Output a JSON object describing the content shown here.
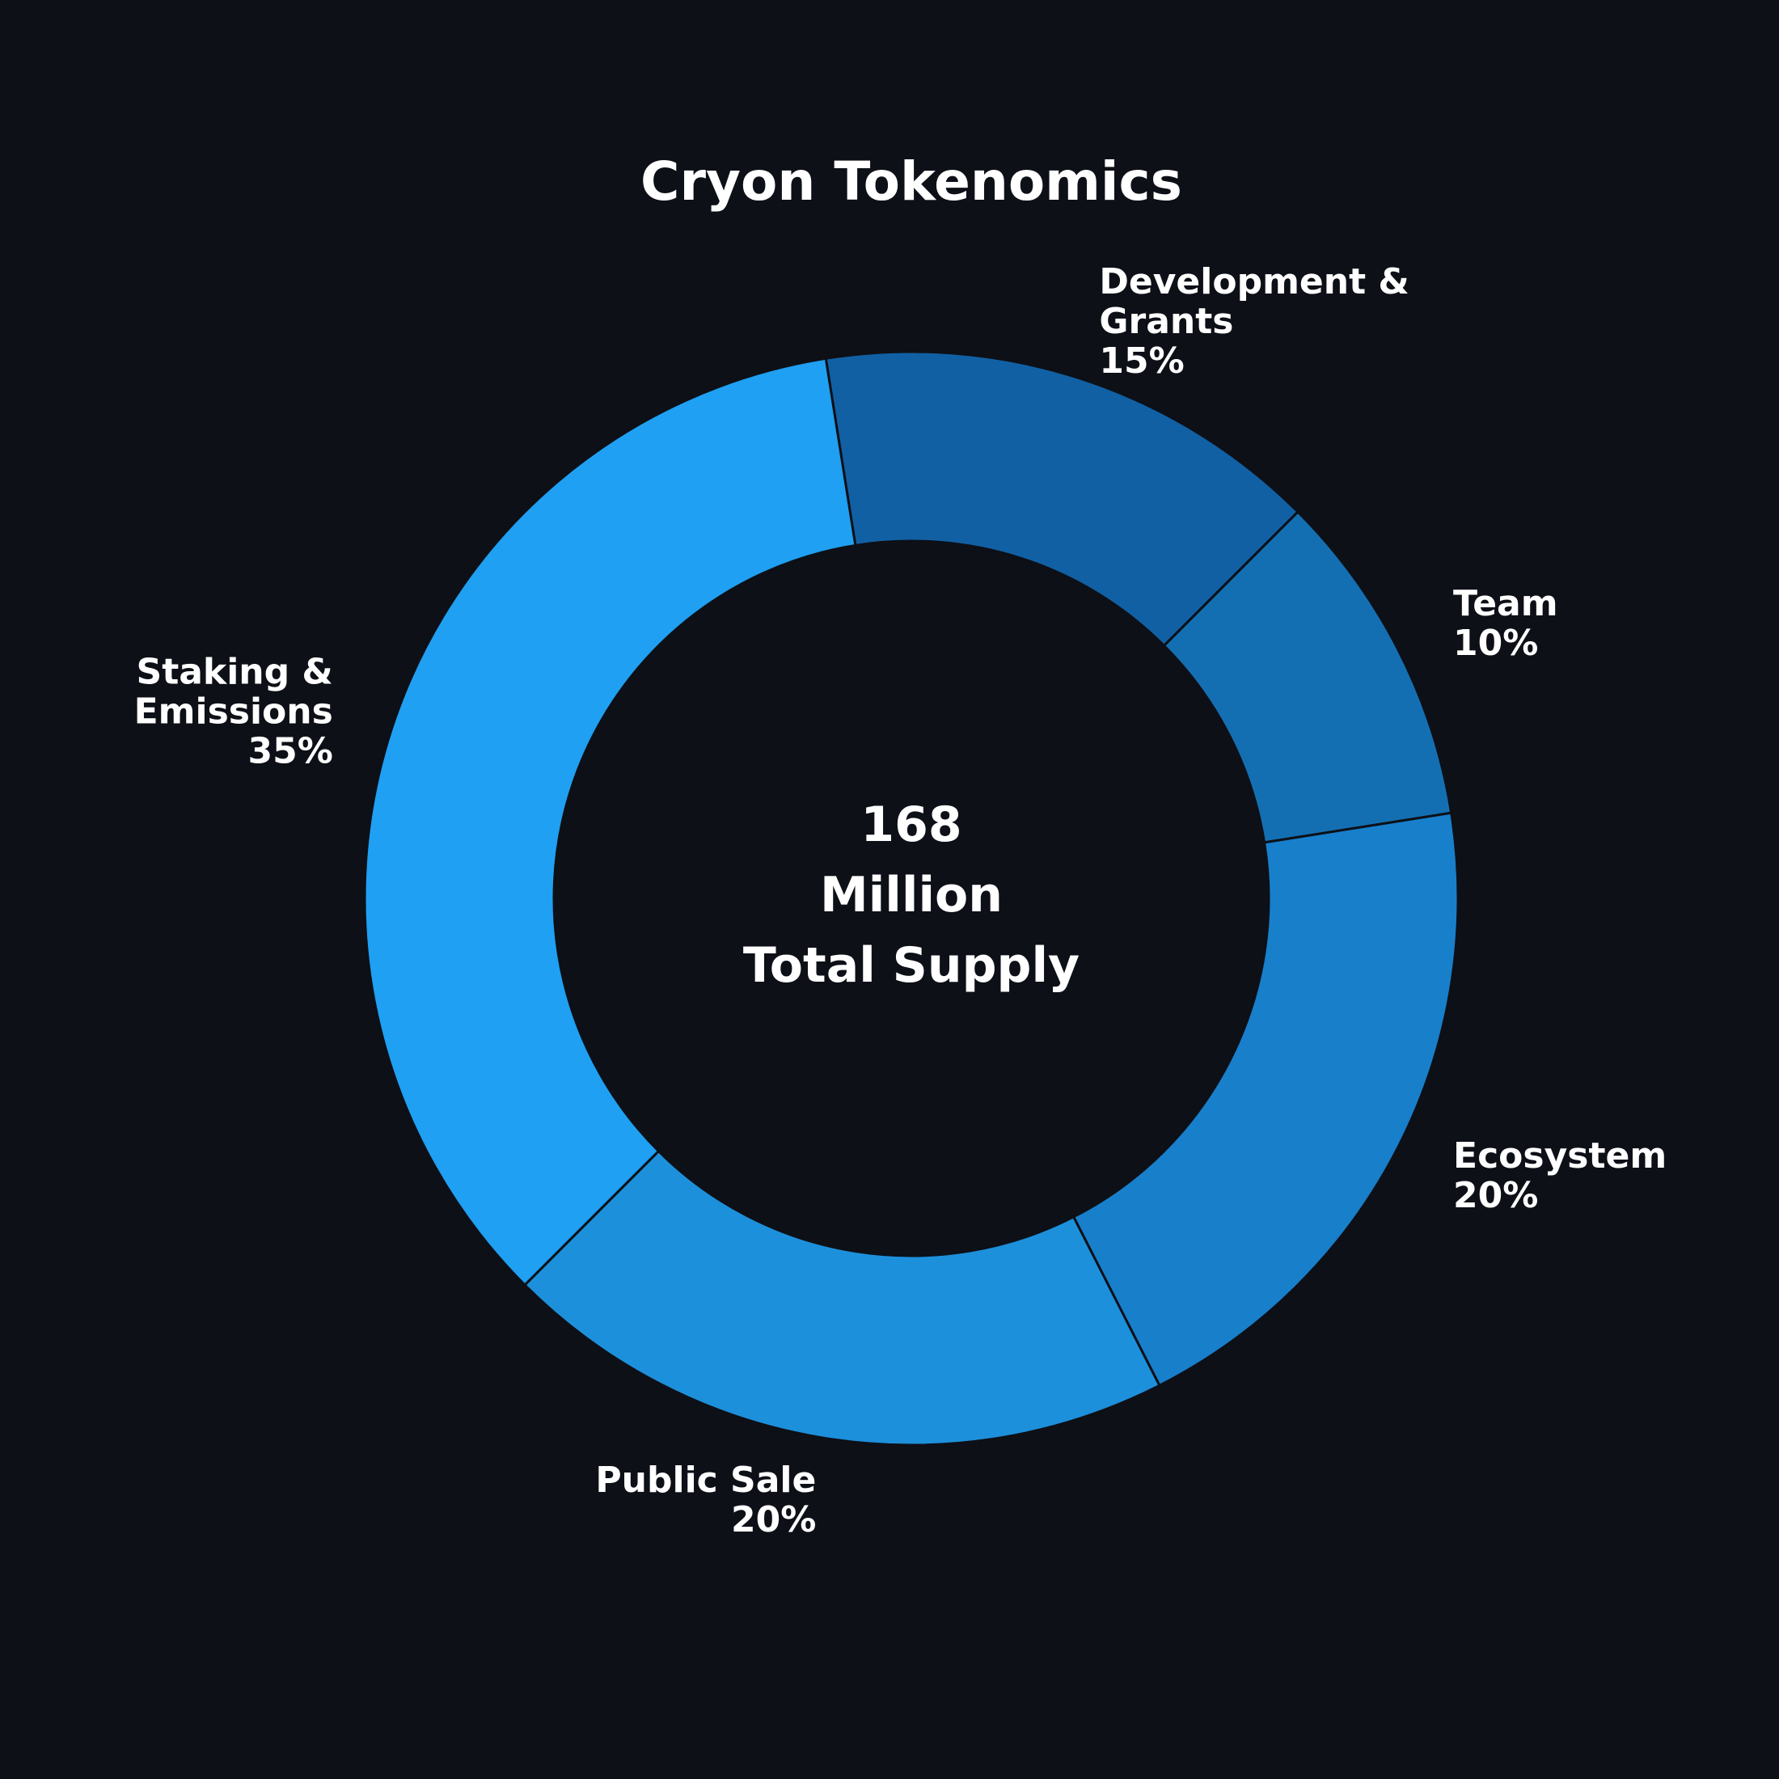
{
  "chart_data": {
    "type": "pie",
    "title": "Cryon Tokenomics",
    "center_text": [
      "168",
      "Million",
      "Total Supply"
    ],
    "background": "#0d1017",
    "text_color": "#ffffff",
    "slices": [
      {
        "label": "Development & Grants",
        "label_lines": [
          "Development &",
          "Grants"
        ],
        "percent_label": "15%",
        "value": 15,
        "color": "#1160a4"
      },
      {
        "label": "Team",
        "label_lines": [
          "Team"
        ],
        "percent_label": "10%",
        "value": 10,
        "color": "#146fb2"
      },
      {
        "label": "Ecosystem",
        "label_lines": [
          "Ecosystem"
        ],
        "percent_label": "20%",
        "value": 20,
        "color": "#187fcb"
      },
      {
        "label": "Public Sale",
        "label_lines": [
          "Public Sale"
        ],
        "percent_label": "20%",
        "value": 20,
        "color": "#1d90dc"
      },
      {
        "label": "Staking & Emissions",
        "label_lines": [
          "Staking &",
          "Emissions"
        ],
        "percent_label": "35%",
        "value": 35,
        "color": "#1fa0f2"
      }
    ],
    "start_angle": "top, slightly left of 12 o'clock",
    "direction": "clockwise",
    "donut": true
  }
}
